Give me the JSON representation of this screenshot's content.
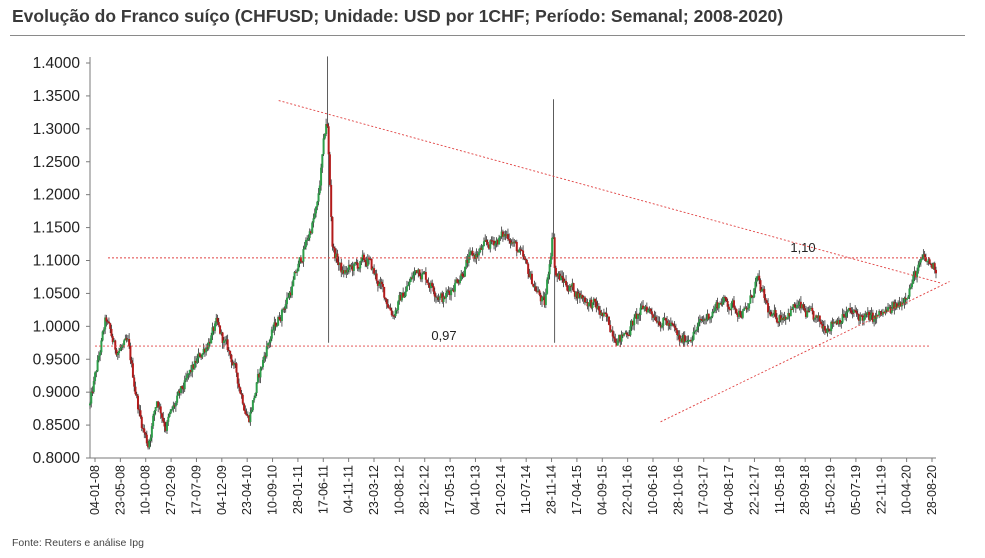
{
  "title": "Evolução do Franco suíço (CHFUSD; Unidade: USD por 1CHF; Período: Semanal; 2008-2020)",
  "source": "Fonte: Reuters e análise Ipg",
  "colors": {
    "up": "#2e9e4a",
    "down": "#b31b1b",
    "wick": "#333333",
    "ref_line": "#e04040"
  },
  "chart_data": {
    "type": "candlestick",
    "frequency": "weekly",
    "ylim": [
      0.8,
      1.4
    ],
    "y_ticks": [
      "0.8000",
      "0.8500",
      "0.9000",
      "0.9500",
      "1.0000",
      "1.0500",
      "1.1000",
      "1.1500",
      "1.2000",
      "1.2500",
      "1.3000",
      "1.3500",
      "1.4000"
    ],
    "x_tick_labels": [
      "04-01-08",
      "23-05-08",
      "10-10-08",
      "27-02-09",
      "17-07-09",
      "04-12-09",
      "23-04-10",
      "10-09-10",
      "28-01-11",
      "17-06-11",
      "04-11-11",
      "23-03-12",
      "10-08-12",
      "28-12-12",
      "17-05-13",
      "04-10-13",
      "21-02-14",
      "11-07-14",
      "28-11-14",
      "17-04-15",
      "04-09-15",
      "22-01-16",
      "10-06-16",
      "28-10-16",
      "17-03-17",
      "04-08-17",
      "22-12-17",
      "11-05-18",
      "28-09-18",
      "15-02-19",
      "05-07-19",
      "22-11-19",
      "10-04-20",
      "28-08-20"
    ],
    "price_path": [
      {
        "date": "2008-01-04",
        "close": 0.88
      },
      {
        "date": "2008-04-01",
        "close": 1.01
      },
      {
        "date": "2008-05-23",
        "close": 0.965
      },
      {
        "date": "2008-08-01",
        "close": 0.97
      },
      {
        "date": "2008-10-10",
        "close": 0.86
      },
      {
        "date": "2008-11-20",
        "close": 0.82
      },
      {
        "date": "2009-01-10",
        "close": 0.89
      },
      {
        "date": "2009-02-27",
        "close": 0.85
      },
      {
        "date": "2009-07-17",
        "close": 0.93
      },
      {
        "date": "2009-12-04",
        "close": 1.0
      },
      {
        "date": "2010-03-01",
        "close": 0.95
      },
      {
        "date": "2010-06-01",
        "close": 0.86
      },
      {
        "date": "2010-09-10",
        "close": 0.97
      },
      {
        "date": "2011-01-28",
        "close": 1.06
      },
      {
        "date": "2011-06-17",
        "close": 1.18
      },
      {
        "date": "2011-08-09",
        "close": 1.32
      },
      {
        "date": "2011-09-10",
        "close": 1.12
      },
      {
        "date": "2011-11-04",
        "close": 1.08
      },
      {
        "date": "2012-03-23",
        "close": 1.1
      },
      {
        "date": "2012-08-10",
        "close": 1.02
      },
      {
        "date": "2012-12-28",
        "close": 1.09
      },
      {
        "date": "2013-05-17",
        "close": 1.04
      },
      {
        "date": "2013-10-04",
        "close": 1.1
      },
      {
        "date": "2014-02-21",
        "close": 1.13
      },
      {
        "date": "2014-05-15",
        "close": 1.14
      },
      {
        "date": "2014-07-11",
        "close": 1.11
      },
      {
        "date": "2014-11-28",
        "close": 1.03
      },
      {
        "date": "2015-01-15",
        "close": 1.15
      },
      {
        "date": "2015-01-25",
        "close": 1.08
      },
      {
        "date": "2015-04-17",
        "close": 1.06
      },
      {
        "date": "2015-09-04",
        "close": 1.03
      },
      {
        "date": "2016-01-22",
        "close": 0.98
      },
      {
        "date": "2016-06-10",
        "close": 1.03
      },
      {
        "date": "2016-10-28",
        "close": 1.0
      },
      {
        "date": "2016-12-20",
        "close": 0.975
      },
      {
        "date": "2017-03-17",
        "close": 0.995
      },
      {
        "date": "2017-08-04",
        "close": 1.04
      },
      {
        "date": "2017-12-22",
        "close": 1.02
      },
      {
        "date": "2018-02-15",
        "close": 1.07
      },
      {
        "date": "2018-05-11",
        "close": 1.01
      },
      {
        "date": "2018-09-28",
        "close": 1.03
      },
      {
        "date": "2019-02-15",
        "close": 1.0
      },
      {
        "date": "2019-07-05",
        "close": 1.02
      },
      {
        "date": "2019-11-22",
        "close": 1.01
      },
      {
        "date": "2020-04-10",
        "close": 1.03
      },
      {
        "date": "2020-08-28",
        "close": 1.1
      },
      {
        "date": "2020-10-30",
        "close": 1.09
      }
    ],
    "spikes": [
      {
        "date": "2011-08-09",
        "high": 1.41
      },
      {
        "date": "2015-01-15",
        "high": 1.345
      }
    ],
    "horizontal_levels": [
      {
        "value": 1.104,
        "label": "1,10"
      },
      {
        "value": 0.97,
        "label": "0,97"
      }
    ],
    "trendlines": [
      {
        "from": {
          "date": "2010-11-15",
          "value": 1.343
        },
        "to": {
          "date": "2020-11-30",
          "value": 1.066
        }
      },
      {
        "from": {
          "date": "2016-09-01",
          "value": 0.855
        },
        "to": {
          "date": "2021-01-20",
          "value": 1.068
        }
      }
    ]
  }
}
